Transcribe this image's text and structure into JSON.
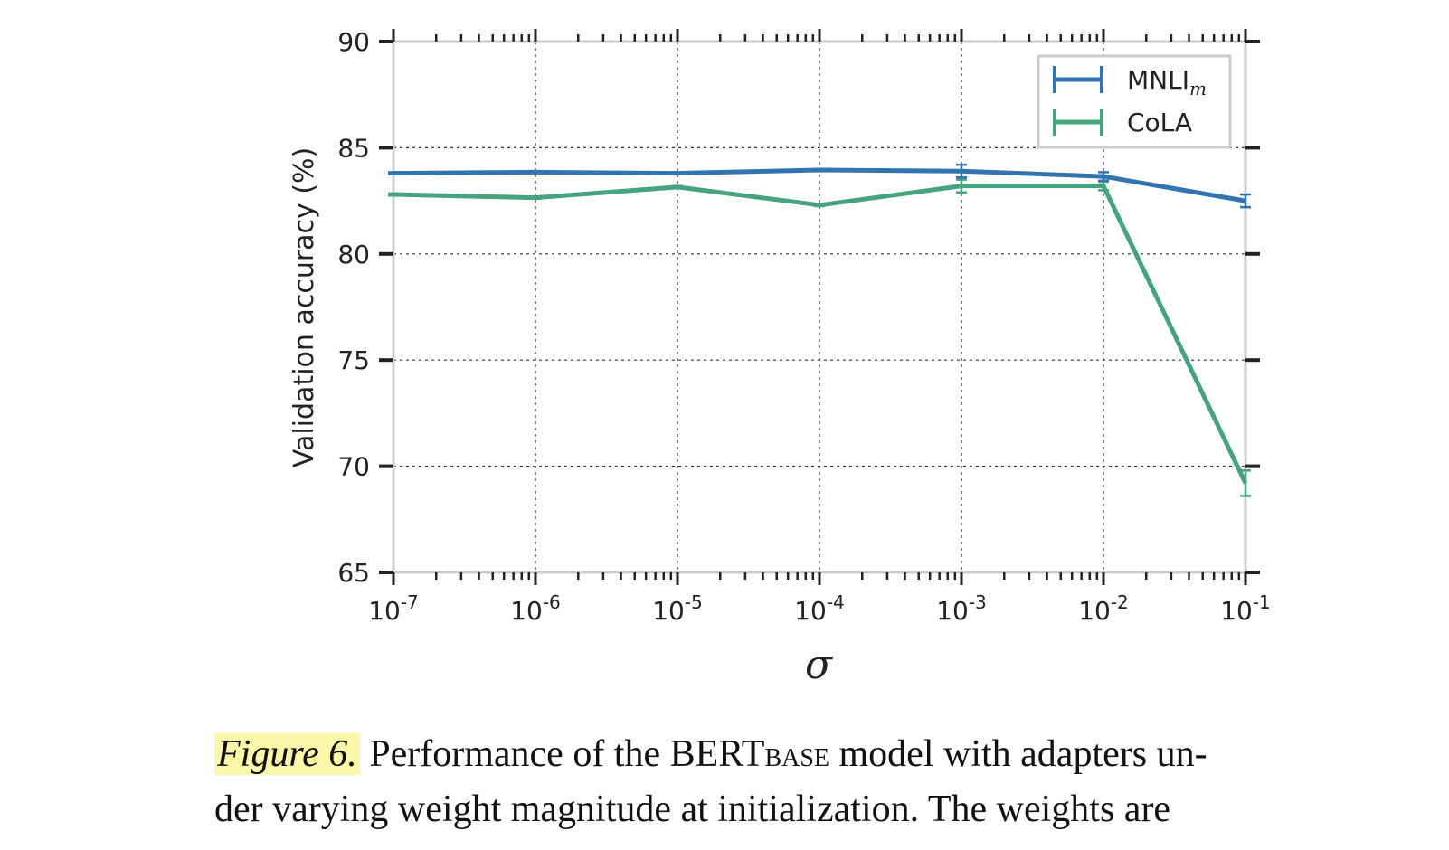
{
  "chart_data": {
    "type": "line",
    "x_scale": "log",
    "x": [
      1e-07,
      1e-06,
      1e-05,
      0.0001,
      0.001,
      0.01,
      0.1
    ],
    "x_tick_labels": [
      {
        "base": "10",
        "exp": "-7"
      },
      {
        "base": "10",
        "exp": "-6"
      },
      {
        "base": "10",
        "exp": "-5"
      },
      {
        "base": "10",
        "exp": "-4"
      },
      {
        "base": "10",
        "exp": "-3"
      },
      {
        "base": "10",
        "exp": "-2"
      },
      {
        "base": "10",
        "exp": "-1"
      }
    ],
    "xlabel": "σ",
    "ylabel": "Validation accuracy (%)",
    "ylim": [
      65,
      90
    ],
    "y_ticks": [
      65,
      70,
      75,
      80,
      85,
      90
    ],
    "grid": true,
    "legend_position": "top-right",
    "series": [
      {
        "name": "MNLI",
        "name_subscript": "m",
        "color": "#3274b0",
        "values": [
          83.8,
          83.85,
          83.8,
          83.95,
          83.9,
          83.65,
          82.5
        ],
        "errors": [
          0.05,
          0.05,
          0.05,
          0.05,
          0.3,
          0.2,
          0.3
        ]
      },
      {
        "name": "CoLA",
        "color": "#45a37e",
        "values": [
          82.8,
          82.65,
          83.15,
          82.3,
          83.2,
          83.2,
          69.2
        ],
        "errors": [
          0.05,
          0.05,
          0.05,
          0.05,
          0.3,
          0.2,
          0.6
        ]
      }
    ]
  },
  "caption": {
    "label": "Figure 6.",
    "text_before_sub": "Performance of the BERT",
    "subscript": "BASE",
    "text_after_sub": " model with adapters un-",
    "line2": "der varying weight magnitude at initialization.  The weights are"
  }
}
